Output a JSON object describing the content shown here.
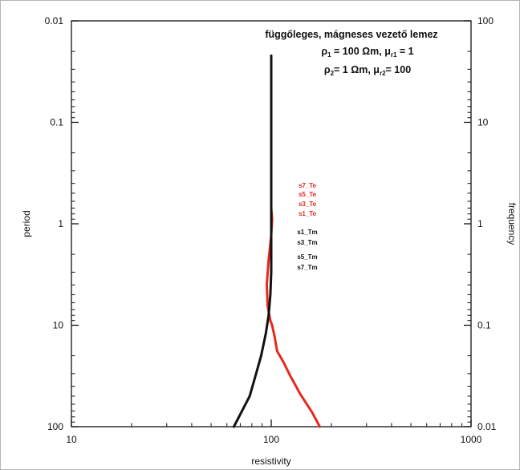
{
  "chart_data": {
    "type": "line",
    "xlabel": "resistivity",
    "ylabel": "period",
    "y2label": "frequency",
    "x_scale": "log",
    "y_scale": "log",
    "y_inverted": true,
    "xlim": [
      10,
      1000
    ],
    "ylim": [
      0.01,
      100
    ],
    "y2lim": [
      100,
      0.01
    ],
    "x_ticks": [
      "10",
      "100",
      "1000"
    ],
    "y_ticks": [
      "0.01",
      "0.1",
      "1",
      "10",
      "100"
    ],
    "y2_ticks": [
      "100",
      "10",
      "1",
      "0.1",
      "0.01"
    ],
    "grid": false,
    "title_lines": [
      {
        "text": "függőleges, mágneses vezető lemez"
      },
      {
        "pre": "ρ",
        "sub1": "1",
        "mid": " = 100 Ωm, μ",
        "sub2": "r1",
        "post": " = 1"
      },
      {
        "pre": "ρ",
        "sub1": "2",
        "mid": "= 1 Ωm, μ",
        "sub2": "r2",
        "post": "= 100"
      }
    ],
    "legend_te": {
      "color": "#e8281e",
      "entries": [
        "s7_Te",
        "s5_Te",
        "s3_Te",
        "s1_Te"
      ]
    },
    "legend_tm": {
      "color": "#111111",
      "entries": [
        "s1_Tm",
        "s3_Tm",
        "s5_Tm",
        "s7_Tm"
      ]
    },
    "series": [
      {
        "name": "Te",
        "color": "#e8281e",
        "x": [
          100,
          101,
          100,
          97,
          95,
          96,
          99,
          101,
          104,
          107,
          115,
          125,
          140,
          160,
          175
        ],
        "y": [
          0.7,
          0.9,
          1.3,
          2.3,
          4,
          6.5,
          9,
          10,
          13,
          18,
          23,
          32,
          48,
          72,
          100
        ]
      },
      {
        "name": "Tm",
        "color": "#111111",
        "x": [
          100,
          100,
          100,
          100,
          100,
          100,
          100,
          100,
          99,
          97,
          94,
          89,
          84,
          78,
          65
        ],
        "y": [
          0.022,
          0.05,
          0.1,
          0.3,
          0.7,
          1,
          2,
          3,
          5,
          8,
          12,
          20,
          30,
          50,
          100
        ]
      }
    ]
  }
}
